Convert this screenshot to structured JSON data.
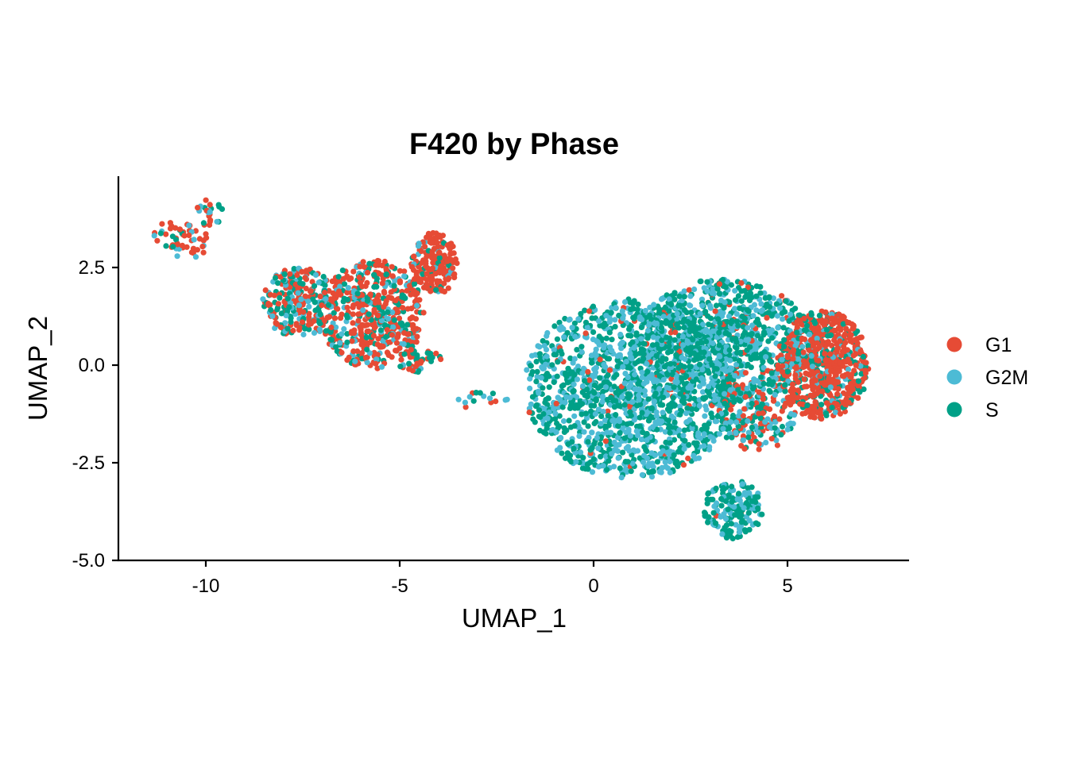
{
  "chart_data": {
    "type": "scatter",
    "title": "F420 by Phase",
    "xlabel": "UMAP_1",
    "ylabel": "UMAP_2",
    "xlim": [
      -12.3,
      8.0
    ],
    "ylim": [
      -5.0,
      4.8
    ],
    "xticks": [
      -10,
      -5,
      0,
      5
    ],
    "xtick_labels": [
      "-10",
      "-5",
      "0",
      "5"
    ],
    "yticks": [
      -5.0,
      -2.5,
      0.0,
      2.5
    ],
    "ytick_labels": [
      "-5.0",
      "-2.5",
      "0.0",
      "2.5"
    ],
    "grid": false,
    "legend_position": "right",
    "series": [
      {
        "name": "G1",
        "color": "#E64B35"
      },
      {
        "name": "G2M",
        "color": "#4DBBD5"
      },
      {
        "name": "S",
        "color": "#00A087"
      }
    ],
    "clusters": [
      {
        "cx": -10.6,
        "cy": 3.25,
        "rx": 0.75,
        "ry": 0.55,
        "n": 55,
        "weights": [
          0.72,
          0.18,
          0.1
        ]
      },
      {
        "cx": -9.9,
        "cy": 3.9,
        "rx": 0.35,
        "ry": 0.35,
        "n": 22,
        "weights": [
          0.45,
          0.3,
          0.25
        ]
      },
      {
        "cx": -7.6,
        "cy": 1.6,
        "rx": 0.95,
        "ry": 0.9,
        "n": 260,
        "weights": [
          0.4,
          0.25,
          0.35
        ]
      },
      {
        "cx": -5.7,
        "cy": 1.3,
        "rx": 1.35,
        "ry": 1.4,
        "n": 520,
        "weights": [
          0.58,
          0.17,
          0.25
        ]
      },
      {
        "cx": -4.1,
        "cy": 2.6,
        "rx": 0.6,
        "ry": 0.8,
        "n": 200,
        "weights": [
          0.85,
          0.07,
          0.08
        ]
      },
      {
        "cx": -4.5,
        "cy": 0.1,
        "rx": 0.6,
        "ry": 0.3,
        "n": 45,
        "weights": [
          0.6,
          0.1,
          0.3
        ]
      },
      {
        "cx": -2.9,
        "cy": -0.9,
        "rx": 0.7,
        "ry": 0.25,
        "n": 16,
        "weights": [
          0.2,
          0.4,
          0.4
        ]
      },
      {
        "cx": 1.0,
        "cy": -0.6,
        "rx": 2.8,
        "ry": 2.3,
        "n": 1500,
        "weights": [
          0.03,
          0.45,
          0.52
        ]
      },
      {
        "cx": 3.3,
        "cy": 0.6,
        "rx": 2.3,
        "ry": 1.6,
        "n": 900,
        "weights": [
          0.08,
          0.37,
          0.55
        ]
      },
      {
        "cx": 3.6,
        "cy": -3.7,
        "rx": 0.8,
        "ry": 0.75,
        "n": 170,
        "weights": [
          0.02,
          0.38,
          0.6
        ]
      },
      {
        "cx": 5.9,
        "cy": 0.0,
        "rx": 1.2,
        "ry": 1.4,
        "n": 700,
        "weights": [
          0.72,
          0.08,
          0.2
        ]
      },
      {
        "cx": 4.2,
        "cy": -1.3,
        "rx": 1.0,
        "ry": 0.9,
        "n": 200,
        "weights": [
          0.35,
          0.25,
          0.4
        ]
      }
    ]
  }
}
